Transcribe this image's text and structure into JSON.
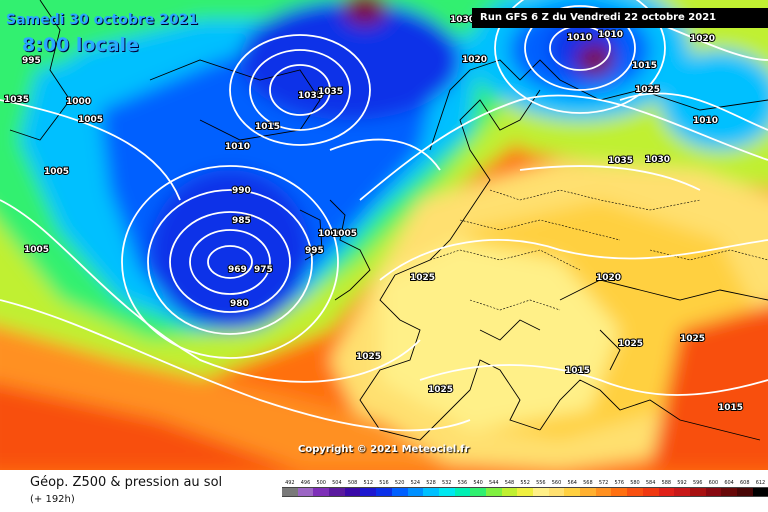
{
  "header": {
    "date_line": "Samedi 30 octobre 2021",
    "time_line": "8:00 locale",
    "run_info": "Run GFS 6 Z du Vendredi 22 octobre 2021"
  },
  "copyright": "Copyright © 2021 Meteociel.fr",
  "footer": {
    "title": "Géop. Z500 & pression au sol",
    "subtitle": "(+ 192h)"
  },
  "legend": {
    "values": [
      "492",
      "496",
      "500",
      "504",
      "508",
      "512",
      "516",
      "520",
      "524",
      "528",
      "532",
      "536",
      "540",
      "544",
      "548",
      "552",
      "556",
      "560",
      "564",
      "568",
      "572",
      "576",
      "580",
      "584",
      "588",
      "592",
      "596",
      "600",
      "604",
      "608",
      "612"
    ],
    "colors": [
      "#7a7a7a",
      "#9c66c4",
      "#7e2fb8",
      "#5a1a9e",
      "#3a0aa8",
      "#1e18d0",
      "#0b30e8",
      "#0060ff",
      "#0090ff",
      "#00c0ff",
      "#00e8f0",
      "#00f0b4",
      "#30f070",
      "#80f040",
      "#c0f030",
      "#f0f040",
      "#fff088",
      "#ffe070",
      "#ffd040",
      "#ffb030",
      "#ff9020",
      "#ff7010",
      "#f85010",
      "#f03810",
      "#e02018",
      "#c81818",
      "#a81010",
      "#880810",
      "#680808",
      "#480606",
      "#000000"
    ]
  },
  "map": {
    "colors": {
      "z520": "#0b30e8",
      "z528": "#0060ff",
      "z536": "#00c0ff",
      "z544": "#30f070",
      "z552": "#c0f030",
      "z556": "#f0f040",
      "z560": "#fff088",
      "z564": "#ffe070",
      "z568": "#ffd040",
      "z572": "#ffb030",
      "z576": "#ff9020",
      "z580": "#ff7010",
      "z584": "#f85010",
      "z588": "#e02018",
      "z600": "#7a0a40"
    },
    "isobar_labels": [
      "995",
      "1000",
      "1005",
      "1010",
      "1015",
      "1020",
      "1025",
      "1030",
      "1035",
      "990",
      "985",
      "980",
      "969",
      "975"
    ]
  }
}
